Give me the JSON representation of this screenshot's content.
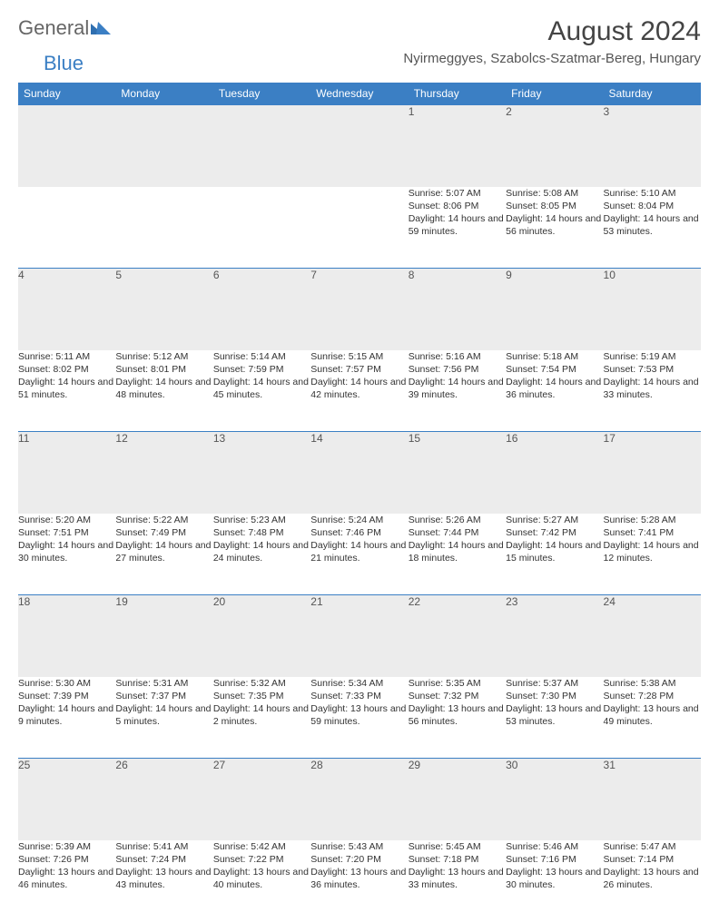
{
  "brand": {
    "part1": "General",
    "part2": "Blue"
  },
  "title": "August 2024",
  "location": "Nyirmeggyes, Szabolcs-Szatmar-Bereg, Hungary",
  "colors": {
    "header_bg": "#3b7fc4",
    "header_fg": "#ffffff",
    "daynum_bg": "#ececec",
    "row_divider": "#3b7fc4",
    "text": "#333333",
    "brand_gray": "#666666",
    "brand_blue": "#3b7fc4",
    "page_bg": "#ffffff"
  },
  "typography": {
    "title_fontsize": 30,
    "location_fontsize": 15,
    "weekday_fontsize": 12,
    "daynum_fontsize": 12,
    "detail_fontsize": 10.5,
    "logo_fontsize": 22
  },
  "weekdays": [
    "Sunday",
    "Monday",
    "Tuesday",
    "Wednesday",
    "Thursday",
    "Friday",
    "Saturday"
  ],
  "weeks": [
    [
      null,
      null,
      null,
      null,
      {
        "day": "1",
        "sunrise": "Sunrise: 5:07 AM",
        "sunset": "Sunset: 8:06 PM",
        "daylight": "Daylight: 14 hours and 59 minutes."
      },
      {
        "day": "2",
        "sunrise": "Sunrise: 5:08 AM",
        "sunset": "Sunset: 8:05 PM",
        "daylight": "Daylight: 14 hours and 56 minutes."
      },
      {
        "day": "3",
        "sunrise": "Sunrise: 5:10 AM",
        "sunset": "Sunset: 8:04 PM",
        "daylight": "Daylight: 14 hours and 53 minutes."
      }
    ],
    [
      {
        "day": "4",
        "sunrise": "Sunrise: 5:11 AM",
        "sunset": "Sunset: 8:02 PM",
        "daylight": "Daylight: 14 hours and 51 minutes."
      },
      {
        "day": "5",
        "sunrise": "Sunrise: 5:12 AM",
        "sunset": "Sunset: 8:01 PM",
        "daylight": "Daylight: 14 hours and 48 minutes."
      },
      {
        "day": "6",
        "sunrise": "Sunrise: 5:14 AM",
        "sunset": "Sunset: 7:59 PM",
        "daylight": "Daylight: 14 hours and 45 minutes."
      },
      {
        "day": "7",
        "sunrise": "Sunrise: 5:15 AM",
        "sunset": "Sunset: 7:57 PM",
        "daylight": "Daylight: 14 hours and 42 minutes."
      },
      {
        "day": "8",
        "sunrise": "Sunrise: 5:16 AM",
        "sunset": "Sunset: 7:56 PM",
        "daylight": "Daylight: 14 hours and 39 minutes."
      },
      {
        "day": "9",
        "sunrise": "Sunrise: 5:18 AM",
        "sunset": "Sunset: 7:54 PM",
        "daylight": "Daylight: 14 hours and 36 minutes."
      },
      {
        "day": "10",
        "sunrise": "Sunrise: 5:19 AM",
        "sunset": "Sunset: 7:53 PM",
        "daylight": "Daylight: 14 hours and 33 minutes."
      }
    ],
    [
      {
        "day": "11",
        "sunrise": "Sunrise: 5:20 AM",
        "sunset": "Sunset: 7:51 PM",
        "daylight": "Daylight: 14 hours and 30 minutes."
      },
      {
        "day": "12",
        "sunrise": "Sunrise: 5:22 AM",
        "sunset": "Sunset: 7:49 PM",
        "daylight": "Daylight: 14 hours and 27 minutes."
      },
      {
        "day": "13",
        "sunrise": "Sunrise: 5:23 AM",
        "sunset": "Sunset: 7:48 PM",
        "daylight": "Daylight: 14 hours and 24 minutes."
      },
      {
        "day": "14",
        "sunrise": "Sunrise: 5:24 AM",
        "sunset": "Sunset: 7:46 PM",
        "daylight": "Daylight: 14 hours and 21 minutes."
      },
      {
        "day": "15",
        "sunrise": "Sunrise: 5:26 AM",
        "sunset": "Sunset: 7:44 PM",
        "daylight": "Daylight: 14 hours and 18 minutes."
      },
      {
        "day": "16",
        "sunrise": "Sunrise: 5:27 AM",
        "sunset": "Sunset: 7:42 PM",
        "daylight": "Daylight: 14 hours and 15 minutes."
      },
      {
        "day": "17",
        "sunrise": "Sunrise: 5:28 AM",
        "sunset": "Sunset: 7:41 PM",
        "daylight": "Daylight: 14 hours and 12 minutes."
      }
    ],
    [
      {
        "day": "18",
        "sunrise": "Sunrise: 5:30 AM",
        "sunset": "Sunset: 7:39 PM",
        "daylight": "Daylight: 14 hours and 9 minutes."
      },
      {
        "day": "19",
        "sunrise": "Sunrise: 5:31 AM",
        "sunset": "Sunset: 7:37 PM",
        "daylight": "Daylight: 14 hours and 5 minutes."
      },
      {
        "day": "20",
        "sunrise": "Sunrise: 5:32 AM",
        "sunset": "Sunset: 7:35 PM",
        "daylight": "Daylight: 14 hours and 2 minutes."
      },
      {
        "day": "21",
        "sunrise": "Sunrise: 5:34 AM",
        "sunset": "Sunset: 7:33 PM",
        "daylight": "Daylight: 13 hours and 59 minutes."
      },
      {
        "day": "22",
        "sunrise": "Sunrise: 5:35 AM",
        "sunset": "Sunset: 7:32 PM",
        "daylight": "Daylight: 13 hours and 56 minutes."
      },
      {
        "day": "23",
        "sunrise": "Sunrise: 5:37 AM",
        "sunset": "Sunset: 7:30 PM",
        "daylight": "Daylight: 13 hours and 53 minutes."
      },
      {
        "day": "24",
        "sunrise": "Sunrise: 5:38 AM",
        "sunset": "Sunset: 7:28 PM",
        "daylight": "Daylight: 13 hours and 49 minutes."
      }
    ],
    [
      {
        "day": "25",
        "sunrise": "Sunrise: 5:39 AM",
        "sunset": "Sunset: 7:26 PM",
        "daylight": "Daylight: 13 hours and 46 minutes."
      },
      {
        "day": "26",
        "sunrise": "Sunrise: 5:41 AM",
        "sunset": "Sunset: 7:24 PM",
        "daylight": "Daylight: 13 hours and 43 minutes."
      },
      {
        "day": "27",
        "sunrise": "Sunrise: 5:42 AM",
        "sunset": "Sunset: 7:22 PM",
        "daylight": "Daylight: 13 hours and 40 minutes."
      },
      {
        "day": "28",
        "sunrise": "Sunrise: 5:43 AM",
        "sunset": "Sunset: 7:20 PM",
        "daylight": "Daylight: 13 hours and 36 minutes."
      },
      {
        "day": "29",
        "sunrise": "Sunrise: 5:45 AM",
        "sunset": "Sunset: 7:18 PM",
        "daylight": "Daylight: 13 hours and 33 minutes."
      },
      {
        "day": "30",
        "sunrise": "Sunrise: 5:46 AM",
        "sunset": "Sunset: 7:16 PM",
        "daylight": "Daylight: 13 hours and 30 minutes."
      },
      {
        "day": "31",
        "sunrise": "Sunrise: 5:47 AM",
        "sunset": "Sunset: 7:14 PM",
        "daylight": "Daylight: 13 hours and 26 minutes."
      }
    ]
  ]
}
